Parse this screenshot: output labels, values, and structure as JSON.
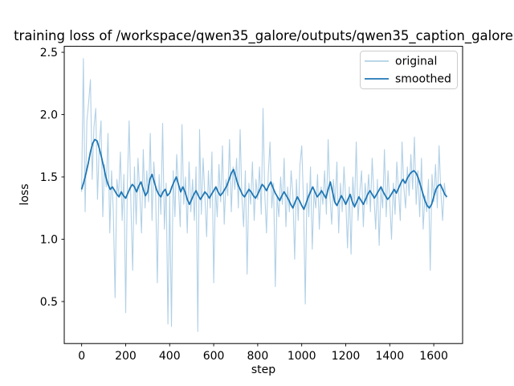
{
  "figure": {
    "background": "#ffffff",
    "text_color": "#000000"
  },
  "chart_data": {
    "type": "line",
    "title": "training loss of /workspace/qwen35_galore/outputs/qwen35_caption_galore",
    "xlabel": "step",
    "ylabel": "loss",
    "grid": false,
    "xlim": [
      -79,
      1731
    ],
    "ylim": [
      0.163,
      2.548
    ],
    "x_ticks": [
      0,
      200,
      400,
      600,
      800,
      1000,
      1200,
      1400,
      1600
    ],
    "x_tick_labels": [
      "0",
      "200",
      "400",
      "600",
      "800",
      "1000",
      "1200",
      "1400",
      "1600"
    ],
    "y_ticks": [
      0.5,
      1.0,
      1.5,
      2.0,
      2.5
    ],
    "y_tick_labels": [
      "0.5",
      "1.0",
      "1.5",
      "2.0",
      "2.5"
    ],
    "legend": {
      "position": "upper right",
      "entries": [
        {
          "label": "original",
          "color": "#b1d0e6"
        },
        {
          "label": "smoothed",
          "color": "#1f77b4"
        }
      ]
    },
    "series": [
      {
        "name": "original",
        "color": "#b1d0e6",
        "stroke_width": 1.1,
        "x_start": 0,
        "x_step": 8,
        "values": [
          1.38,
          2.45,
          1.22,
          1.95,
          2.1,
          2.28,
          1.48,
          1.9,
          2.05,
          1.32,
          1.75,
          1.95,
          1.18,
          1.6,
          1.42,
          1.85,
          1.05,
          1.55,
          1.22,
          0.53,
          1.48,
          1.35,
          1.7,
          1.15,
          1.52,
          0.41,
          1.45,
          1.95,
          1.28,
          0.75,
          1.58,
          1.12,
          1.65,
          1.38,
          1.05,
          1.72,
          1.25,
          1.55,
          1.3,
          1.85,
          1.15,
          1.62,
          1.4,
          0.65,
          1.52,
          1.2,
          1.93,
          1.08,
          1.45,
          0.32,
          1.35,
          0.3,
          1.55,
          1.18,
          1.68,
          1.42,
          1.1,
          1.92,
          1.28,
          1.5,
          1.05,
          1.62,
          1.22,
          1.48,
          1.15,
          1.58,
          0.26,
          1.88,
          1.2,
          1.65,
          1.35,
          1.02,
          1.55,
          1.25,
          1.7,
          0.65,
          1.42,
          1.18,
          1.6,
          1.3,
          1.75,
          1.12,
          1.48,
          1.35,
          1.8,
          1.22,
          1.58,
          1.4,
          1.65,
          1.25,
          1.88,
          1.35,
          1.1,
          1.55,
          0.72,
          1.45,
          1.28,
          1.62,
          1.15,
          1.48,
          1.32,
          1.58,
          1.2,
          2.05,
          1.38,
          1.05,
          1.52,
          1.78,
          1.25,
          1.45,
          0.62,
          1.35,
          1.18,
          1.5,
          1.28,
          1.65,
          1.1,
          1.42,
          1.22,
          1.55,
          1.35,
          0.84,
          1.48,
          1.15,
          1.6,
          1.75,
          1.3,
          0.48,
          1.45,
          1.18,
          1.58,
          0.92,
          1.38,
          1.25,
          1.52,
          1.08,
          1.42,
          1.28,
          1.55,
          1.2,
          1.8,
          1.35,
          1.12,
          1.48,
          1.28,
          1.62,
          1.05,
          1.45,
          1.22,
          1.58,
          1.32,
          0.93,
          1.42,
          0.88,
          1.5,
          1.25,
          1.78,
          1.15,
          1.38,
          1.55,
          1.1,
          1.45,
          1.28,
          1.52,
          1.22,
          1.65,
          1.35,
          1.08,
          1.48,
          0.95,
          1.4,
          1.25,
          1.72,
          1.18,
          1.55,
          1.3,
          1.0,
          1.45,
          1.2,
          1.62,
          1.38,
          1.15,
          1.78,
          1.42,
          1.25,
          1.58,
          1.35,
          1.68,
          1.4,
          1.82,
          1.28,
          1.55,
          1.18,
          1.65,
          1.08,
          1.35,
          1.22,
          1.48,
          0.75,
          1.52,
          1.3,
          1.6,
          1.25,
          1.75,
          1.38,
          1.15,
          1.45,
          1.33
        ]
      },
      {
        "name": "smoothed",
        "color": "#1f77b4",
        "stroke_width": 1.8,
        "x_start": 0,
        "x_step": 10,
        "values": [
          1.4,
          1.46,
          1.53,
          1.61,
          1.7,
          1.77,
          1.8,
          1.79,
          1.73,
          1.66,
          1.58,
          1.5,
          1.44,
          1.4,
          1.42,
          1.39,
          1.36,
          1.34,
          1.38,
          1.35,
          1.33,
          1.37,
          1.41,
          1.44,
          1.42,
          1.38,
          1.43,
          1.46,
          1.4,
          1.35,
          1.38,
          1.48,
          1.52,
          1.46,
          1.4,
          1.36,
          1.34,
          1.38,
          1.4,
          1.35,
          1.37,
          1.42,
          1.46,
          1.5,
          1.44,
          1.38,
          1.42,
          1.38,
          1.32,
          1.28,
          1.32,
          1.36,
          1.39,
          1.35,
          1.32,
          1.35,
          1.38,
          1.36,
          1.33,
          1.36,
          1.39,
          1.42,
          1.38,
          1.35,
          1.37,
          1.4,
          1.43,
          1.48,
          1.53,
          1.56,
          1.5,
          1.44,
          1.4,
          1.36,
          1.34,
          1.37,
          1.4,
          1.38,
          1.35,
          1.33,
          1.36,
          1.4,
          1.44,
          1.42,
          1.39,
          1.43,
          1.46,
          1.41,
          1.37,
          1.34,
          1.31,
          1.35,
          1.38,
          1.35,
          1.32,
          1.28,
          1.25,
          1.3,
          1.34,
          1.31,
          1.27,
          1.24,
          1.29,
          1.34,
          1.38,
          1.42,
          1.38,
          1.34,
          1.36,
          1.39,
          1.36,
          1.33,
          1.4,
          1.46,
          1.38,
          1.3,
          1.27,
          1.31,
          1.35,
          1.32,
          1.28,
          1.32,
          1.36,
          1.3,
          1.26,
          1.3,
          1.34,
          1.31,
          1.28,
          1.32,
          1.36,
          1.39,
          1.36,
          1.33,
          1.36,
          1.39,
          1.42,
          1.38,
          1.35,
          1.32,
          1.34,
          1.37,
          1.4,
          1.37,
          1.41,
          1.45,
          1.48,
          1.45,
          1.49,
          1.52,
          1.54,
          1.55,
          1.53,
          1.49,
          1.43,
          1.37,
          1.31,
          1.27,
          1.25,
          1.28,
          1.34,
          1.4,
          1.43,
          1.44,
          1.4,
          1.36,
          1.34
        ]
      }
    ]
  }
}
